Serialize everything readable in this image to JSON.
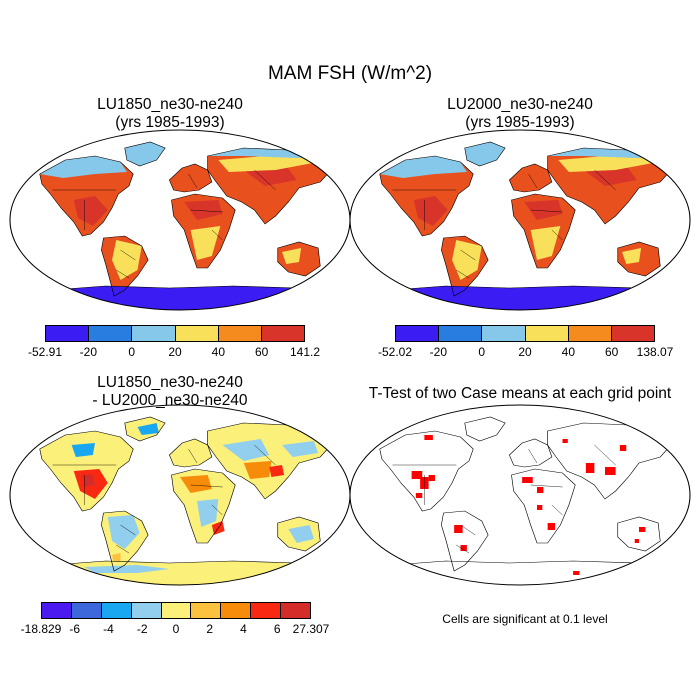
{
  "title": "MAM FSH (W/m^2)",
  "panels": [
    {
      "title_line1": "LU1850_ne30-ne240",
      "title_line2": "(yrs 1985-1993)"
    },
    {
      "title_line1": "LU2000_ne30-ne240",
      "title_line2": "(yrs 1985-1993)"
    },
    {
      "title_line1": "LU1850_ne30-ne240",
      "title_line2": "- LU2000_ne30-ne240"
    },
    {
      "title_line1": "T-Test of two Case means at each grid point",
      "title_line2": ""
    }
  ],
  "colorbars": [
    {
      "labels": [
        "-52.91",
        "-20",
        "0",
        "20",
        "40",
        "60",
        "141.2"
      ],
      "colors": [
        "#3b1cf2",
        "#2a7de0",
        "#86c8ea",
        "#f8e05a",
        "#f58a1e",
        "#d8342a"
      ]
    },
    {
      "labels": [
        "-52.02",
        "-20",
        "0",
        "20",
        "40",
        "60",
        "138.07"
      ],
      "colors": [
        "#3b1cf2",
        "#2a7de0",
        "#86c8ea",
        "#f8e05a",
        "#f58a1e",
        "#d8342a"
      ]
    },
    {
      "labels": [
        "-18.829",
        "-6",
        "-4",
        "-2",
        "0",
        "2",
        "4",
        "6",
        "27.307"
      ],
      "colors": [
        "#4a1af0",
        "#3c68dc",
        "#19a7f2",
        "#92cfee",
        "#fbf07a",
        "#fbc240",
        "#f68c0a",
        "#f92812",
        "#d42c28"
      ]
    }
  ],
  "note": "Cells are significant at 0.1 level"
}
